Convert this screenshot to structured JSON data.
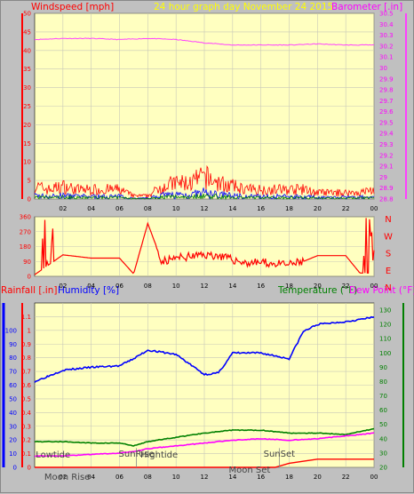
{
  "colors": {
    "background": "#c0c0c0",
    "plot_bg": "#ffffc0",
    "grid": "#c8c8b8",
    "wind": "#ff0000",
    "gust_blue": "#0000ff",
    "gust_green": "#008000",
    "barometer": "#ff40ff",
    "humidity": "#0000ff",
    "temperature": "#008000",
    "dewpoint": "#ff00ff",
    "rainfall": "#ff0000"
  },
  "header": {
    "wind_label": "Windspeed [mph]",
    "title": "24 hour graph day   November 24 2015",
    "baro_label": "Barometer [.in]"
  },
  "bottom_header": {
    "rain_label": "Rainfall [.in]",
    "humidity_label": "Humidity [%]",
    "temp_label": "Temperature (°F)",
    "dew_label": "Dew Point (°F)"
  },
  "compass": [
    "N",
    "W",
    "S",
    "E",
    "N"
  ],
  "annotations": {
    "lowtide": "Lowtide",
    "moonrise": "Moon Rise",
    "sunrise": "SunRise",
    "hightide": "Hightide",
    "moonset": "Moon Set",
    "sunset": "SunSet"
  },
  "chart_data": [
    {
      "type": "line",
      "title": "24 hour graph day   November 24 2015",
      "x_ticks": [
        "02",
        "04",
        "06",
        "08",
        "10",
        "12",
        "14",
        "16",
        "18",
        "20",
        "22",
        "00"
      ],
      "ylabel": "Windspeed [mph]",
      "ylim": [
        0,
        50
      ],
      "y_ticks": [
        "0",
        "5",
        "10",
        "15",
        "20",
        "25",
        "30",
        "35",
        "40",
        "45",
        "50"
      ],
      "y2label": "Barometer [.in]",
      "y2lim": [
        28.8,
        30.5
      ],
      "y2_ticks": [
        "28.8",
        "28.9",
        "29",
        "29.1",
        "29.2",
        "29.3",
        "29.4",
        "29.5",
        "29.6",
        "29.7",
        "29.8",
        "29.9",
        "30",
        "30.1",
        "30.2",
        "30.3",
        "30.4",
        "30.5"
      ],
      "series": [
        {
          "name": "Windspeed",
          "x": [
            0,
            1,
            2,
            3,
            4,
            5,
            6,
            7,
            8,
            9,
            10,
            11,
            12,
            13,
            14,
            15,
            16,
            17,
            18,
            19,
            20,
            21,
            22,
            23,
            24
          ],
          "values": [
            4,
            3,
            4,
            3,
            3,
            3,
            3,
            1,
            1,
            4,
            5,
            5,
            7,
            5,
            4,
            3,
            3,
            3,
            3,
            3,
            2,
            2,
            2,
            2,
            3
          ]
        },
        {
          "name": "Barometer",
          "x": [
            0,
            2,
            4,
            6,
            8,
            10,
            12,
            14,
            16,
            18,
            20,
            22,
            24
          ],
          "values": [
            30.26,
            30.27,
            30.27,
            30.26,
            30.27,
            30.26,
            30.23,
            30.21,
            30.21,
            30.21,
            30.22,
            30.21,
            30.21
          ]
        }
      ]
    },
    {
      "type": "scatter",
      "ylabel": "Wind direction",
      "ylim": [
        0,
        360
      ],
      "y_ticks": [
        "0",
        "90",
        "180",
        "270",
        "360"
      ],
      "series": [
        {
          "name": "Wind direction",
          "x": [
            0,
            2,
            4,
            6,
            7,
            8,
            9,
            10,
            11,
            12,
            13,
            14,
            15,
            16,
            17,
            18,
            19,
            20,
            21,
            22,
            23,
            24
          ],
          "values": [
            10,
            130,
            110,
            110,
            15,
            320,
            90,
            110,
            120,
            130,
            125,
            100,
            80,
            85,
            75,
            70,
            90,
            125,
            125,
            125,
            20,
            20
          ]
        }
      ]
    },
    {
      "type": "line",
      "ylabel": "Rainfall [.in] / Humidity [%]",
      "ylim": [
        0,
        1.2
      ],
      "y_ticks": [
        "0",
        "0.1",
        "0.2",
        "0.3",
        "0.4",
        "0.5",
        "0.6",
        "0.7",
        "0.8",
        "0.9",
        "1",
        "1.1"
      ],
      "y_ticks_humidity": [
        "0",
        "10",
        "20",
        "30",
        "40",
        "50",
        "60",
        "70",
        "80",
        "90",
        "100"
      ],
      "y2label": "Temperature (°F) / Dew Point (°F)",
      "y2lim": [
        20,
        135
      ],
      "y2_ticks": [
        "20",
        "30",
        "40",
        "50",
        "60",
        "70",
        "80",
        "90",
        "100",
        "110",
        "120",
        "130"
      ],
      "series": [
        {
          "name": "Humidity",
          "x": [
            0,
            2,
            4,
            6,
            7,
            8,
            10,
            11,
            12,
            13,
            14,
            16,
            18,
            19,
            20,
            22,
            24
          ],
          "values": [
            80,
            88,
            90,
            91,
            96,
            102,
            99,
            92,
            85,
            86,
            100,
            100,
            96,
            115,
            120,
            122,
            125
          ]
        },
        {
          "name": "Temperature",
          "x": [
            0,
            2,
            4,
            6,
            7,
            8,
            10,
            12,
            14,
            16,
            18,
            20,
            22,
            24
          ],
          "values": [
            38,
            38,
            37,
            37,
            35,
            38,
            41,
            44,
            46,
            46,
            44,
            44,
            43,
            47
          ]
        },
        {
          "name": "Dew Point",
          "x": [
            0,
            2,
            4,
            6,
            7,
            8,
            10,
            12,
            14,
            16,
            18,
            20,
            22,
            24
          ],
          "values": [
            28,
            28,
            29,
            30,
            31,
            33,
            35,
            37,
            39,
            40,
            39,
            40,
            42,
            44
          ]
        },
        {
          "name": "Rainfall",
          "x": [
            0,
            17,
            18,
            20,
            22,
            23,
            24
          ],
          "values": [
            0,
            0,
            0.03,
            0.06,
            0.06,
            0.06,
            0.06
          ]
        }
      ]
    }
  ]
}
